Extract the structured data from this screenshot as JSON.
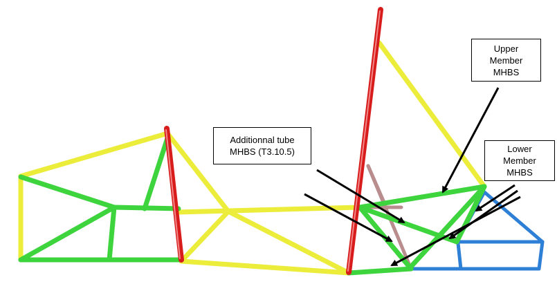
{
  "callouts": {
    "upper_member": {
      "lines": [
        "Upper",
        "Member",
        "MHBS"
      ]
    },
    "lower_member": {
      "lines": [
        "Lower",
        "Member",
        "MHBS"
      ]
    },
    "additional_tube": {
      "lines": [
        "Additionnal tube",
        "MHBS (T3.10.5)"
      ]
    }
  },
  "colors": {
    "yellow_tube": "#ecec3a",
    "green_tube": "#3ed43e",
    "red_tube": "#d81c1c",
    "blue_tube": "#2e7fd6",
    "mauve_tube": "#b98d8d",
    "arrow": "#000000"
  }
}
